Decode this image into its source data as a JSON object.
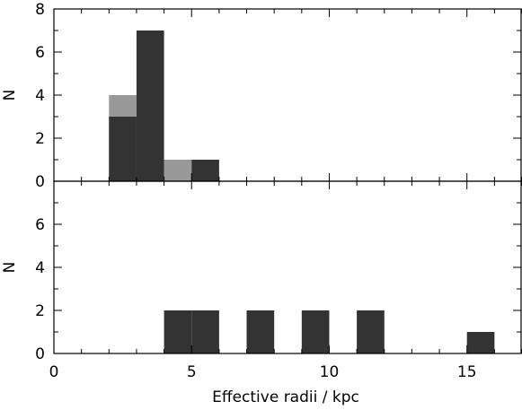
{
  "chart_data": [
    {
      "type": "bar",
      "panel": "top",
      "xlabel": "",
      "ylabel": "N",
      "xlim": [
        0,
        17
      ],
      "ylim": [
        0,
        8
      ],
      "bin_width": 1,
      "yticks": [
        0,
        2,
        4,
        6,
        8
      ],
      "series": [
        {
          "color": "#999999",
          "bins": [
            {
              "x0": 2,
              "x1": 3,
              "count": 4
            },
            {
              "x0": 4,
              "x1": 5,
              "count": 1
            }
          ]
        },
        {
          "color": "#333333",
          "bins": [
            {
              "x0": 2,
              "x1": 3,
              "count": 3
            },
            {
              "x0": 3,
              "x1": 4,
              "count": 7
            },
            {
              "x0": 5,
              "x1": 6,
              "count": 1
            }
          ]
        }
      ]
    },
    {
      "type": "bar",
      "panel": "bottom",
      "xlabel": "Effective radii / kpc",
      "ylabel": "N",
      "xlim": [
        0,
        17
      ],
      "ylim": [
        0,
        8
      ],
      "bin_width": 1,
      "xticks": [
        0,
        5,
        10,
        15
      ],
      "yticks": [
        0,
        2,
        4,
        6
      ],
      "series": [
        {
          "color": "#333333",
          "bins": [
            {
              "x0": 4,
              "x1": 5,
              "count": 2
            },
            {
              "x0": 5,
              "x1": 6,
              "count": 2
            },
            {
              "x0": 7,
              "x1": 8,
              "count": 2
            },
            {
              "x0": 9,
              "x1": 10,
              "count": 2
            },
            {
              "x0": 11,
              "x1": 12,
              "count": 2
            },
            {
              "x0": 15,
              "x1": 16,
              "count": 1
            }
          ]
        }
      ]
    }
  ]
}
